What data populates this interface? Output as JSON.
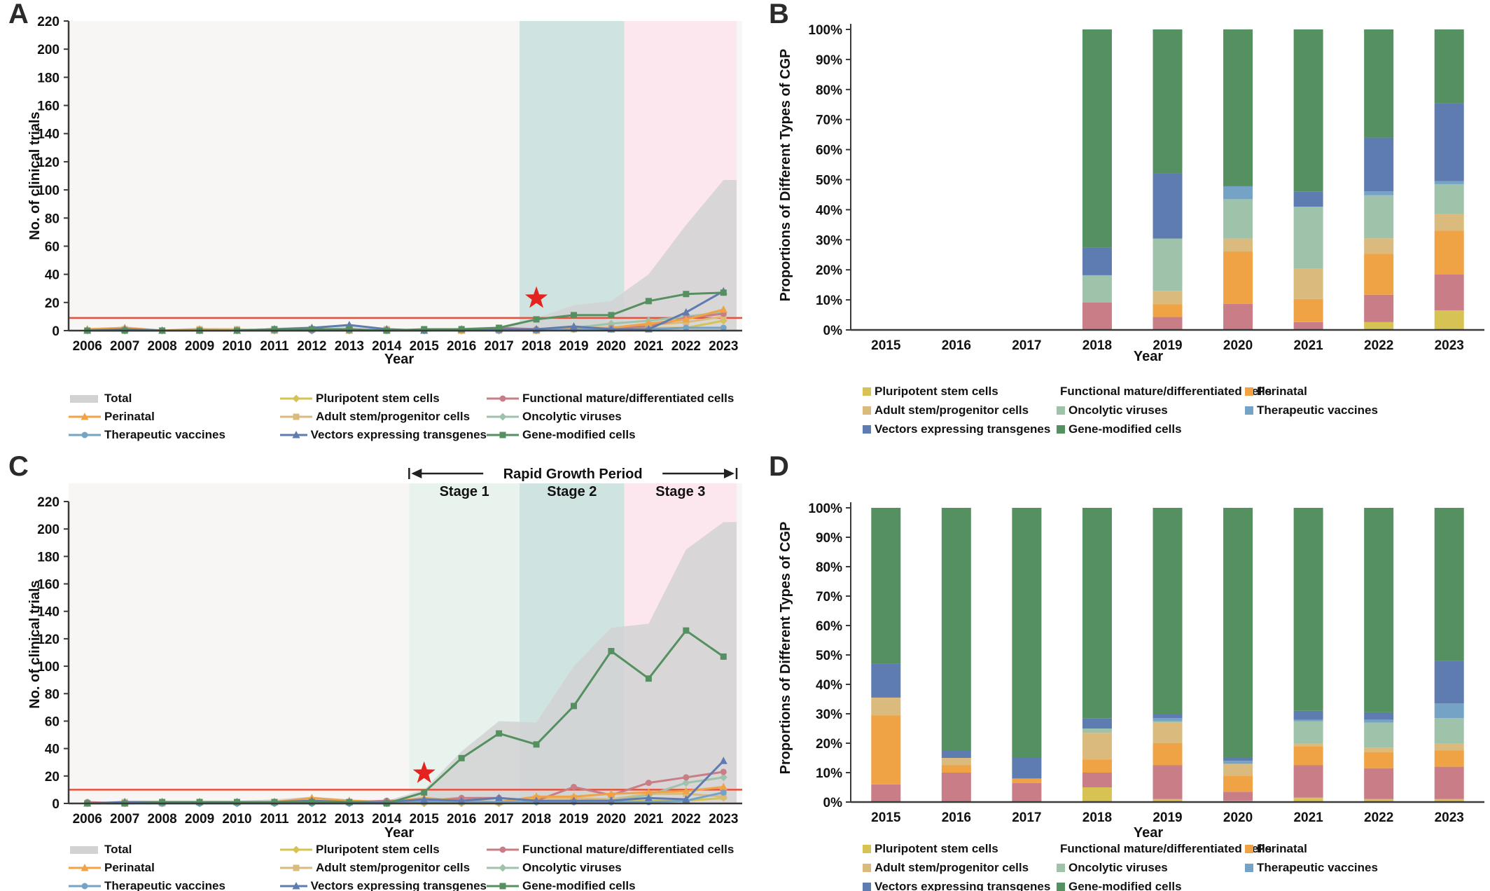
{
  "colors": {
    "bg_plot": "#f7f6f5",
    "band_mint": "#e9f3ee",
    "band_teal": "#cfe3e0",
    "band_pink": "#fbe7ed",
    "total_gray": "#d2d2d2",
    "ref_red": "#e8503c",
    "star_red": "#e42320",
    "axis": "#3a3a3a"
  },
  "series_meta": {
    "total": {
      "label": "Total",
      "color": "#d2d2d2",
      "swatch": "area"
    },
    "pluripotent": {
      "label": "Pluripotent stem cells",
      "color": "#d6c354",
      "marker": "diamond"
    },
    "functional": {
      "label": "Functional mature/differentiated cells",
      "color": "#c97d86",
      "marker": "circle"
    },
    "perinatal": {
      "label": "Perinatal",
      "color": "#f0a345",
      "marker": "triangle"
    },
    "adult": {
      "label": "Adult stem/progenitor cells",
      "color": "#dabb7d",
      "marker": "square"
    },
    "oncolytic": {
      "label": "Oncolytic viruses",
      "color": "#9fc2ab",
      "marker": "diamond"
    },
    "vaccines": {
      "label": "Therapeutic vaccines",
      "color": "#74a3c6",
      "marker": "circle"
    },
    "vectors": {
      "label": "Vectors expressing transgenes",
      "color": "#5f7cb0",
      "marker": "triangle"
    },
    "gene_modified": {
      "label": "Gene-modified cells",
      "color": "#559060",
      "marker": "square"
    }
  },
  "panels": {
    "a": {
      "label": "A",
      "y_title": "No. of clinical trials",
      "x_title": "Year"
    },
    "b": {
      "label": "B",
      "y_title": "Proportions of Different Types of CGP",
      "x_title": "Year"
    },
    "c": {
      "label": "C",
      "y_title": "No. of clinical trials",
      "x_title": "Year"
    },
    "d": {
      "label": "D",
      "y_title": "Proportions of Different Types of CGP",
      "x_title": "Year"
    }
  },
  "legends": {
    "line_panels_rows": [
      [
        "total",
        "pluripotent",
        "functional"
      ],
      [
        "perinatal",
        "adult",
        "oncolytic"
      ],
      [
        "vaccines",
        "vectors",
        "gene_modified"
      ]
    ],
    "bar_panels_rows": [
      [
        "pluripotent",
        "functional",
        "perinatal"
      ],
      [
        "adult",
        "oncolytic",
        "vaccines"
      ],
      [
        "vectors",
        "gene_modified"
      ]
    ]
  },
  "chart_data": [
    {
      "id": "A",
      "type": "line",
      "xlabel": "Year",
      "ylabel": "No. of clinical trials",
      "x": [
        2006,
        2007,
        2008,
        2009,
        2010,
        2011,
        2012,
        2013,
        2014,
        2015,
        2016,
        2017,
        2018,
        2019,
        2020,
        2021,
        2022,
        2023
      ],
      "ylim": [
        0,
        220
      ],
      "ytick_step": 20,
      "grid": false,
      "legend_position": "bottom",
      "bands": [
        {
          "from": 2017.55,
          "to": 2020.35,
          "color_key": "band_teal"
        },
        {
          "from": 2020.35,
          "to": 2023.35,
          "color_key": "band_pink"
        }
      ],
      "ref_line_y": 9,
      "star": {
        "x": 2018,
        "y": 23
      },
      "area_extend_to": 2023.35,
      "total_values": [
        1,
        3,
        1,
        2,
        1,
        2,
        3,
        4,
        2,
        1,
        2,
        3,
        9,
        18,
        21,
        40,
        75,
        107
      ],
      "series": [
        {
          "key": "pluripotent",
          "values": [
            0,
            0,
            0,
            0,
            0,
            0,
            0,
            0,
            0,
            0,
            0,
            0,
            0,
            1,
            1,
            2,
            2,
            7
          ]
        },
        {
          "key": "adult",
          "values": [
            0,
            1,
            0,
            1,
            1,
            0,
            1,
            0,
            1,
            0,
            0,
            0,
            0,
            1,
            2,
            4,
            6,
            10
          ]
        },
        {
          "key": "oncolytic",
          "values": [
            0,
            0,
            0,
            0,
            0,
            0,
            0,
            0,
            0,
            0,
            0,
            0,
            1,
            2,
            5,
            7,
            10,
            13
          ]
        },
        {
          "key": "functional",
          "values": [
            0,
            0,
            0,
            0,
            0,
            0,
            0,
            0,
            0,
            0,
            0,
            2,
            1,
            1,
            2,
            3,
            9,
            12
          ]
        },
        {
          "key": "perinatal",
          "values": [
            1,
            2,
            0,
            1,
            0,
            0,
            1,
            0,
            0,
            0,
            0,
            1,
            0,
            2,
            2,
            5,
            8,
            15
          ]
        },
        {
          "key": "vaccines",
          "values": [
            0,
            0,
            0,
            0,
            0,
            0,
            0,
            0,
            0,
            0,
            1,
            0,
            0,
            1,
            1,
            1,
            2,
            2
          ]
        },
        {
          "key": "vectors",
          "values": [
            0,
            1,
            0,
            0,
            0,
            1,
            2,
            4,
            1,
            0,
            1,
            1,
            1,
            3,
            1,
            1,
            13,
            28
          ]
        },
        {
          "key": "gene_modified",
          "values": [
            0,
            0,
            0,
            0,
            0,
            1,
            1,
            1,
            0,
            1,
            1,
            2,
            8,
            11,
            11,
            21,
            26,
            27
          ]
        }
      ]
    },
    {
      "id": "B",
      "type": "stacked_bar_percent",
      "xlabel": "Year",
      "ylabel": "Proportions of Different Types of CGP",
      "x": [
        2015,
        2016,
        2017,
        2018,
        2019,
        2020,
        2021,
        2022,
        2023
      ],
      "ylim": [
        0,
        100
      ],
      "ytick_step": 10,
      "grid": false,
      "legend_position": "bottom",
      "series": [
        {
          "key": "pluripotent",
          "values": [
            0,
            0,
            0,
            0,
            0,
            0,
            0,
            2.6,
            6.5
          ]
        },
        {
          "key": "functional",
          "values": [
            0,
            0,
            0,
            9.1,
            4.3,
            8.7,
            2.6,
            9.1,
            12.0
          ]
        },
        {
          "key": "perinatal",
          "values": [
            0,
            0,
            0,
            0,
            4.3,
            17.4,
            7.7,
            13.6,
            14.5
          ]
        },
        {
          "key": "adult",
          "values": [
            0,
            0,
            0,
            0,
            4.4,
            4.3,
            10.2,
            5.2,
            5.5
          ]
        },
        {
          "key": "oncolytic",
          "values": [
            0,
            0,
            0,
            9.1,
            17.4,
            13.1,
            20.5,
            14.3,
            10.0
          ]
        },
        {
          "key": "vaccines",
          "values": [
            0,
            0,
            0,
            0,
            0,
            4.3,
            0,
            1.3,
            1.0
          ]
        },
        {
          "key": "vectors",
          "values": [
            0,
            0,
            0,
            9.1,
            21.8,
            0,
            5.1,
            17.9,
            26.0
          ]
        },
        {
          "key": "gene_modified",
          "values": [
            0,
            0,
            0,
            72.7,
            47.8,
            52.2,
            53.9,
            36.0,
            24.5
          ]
        }
      ]
    },
    {
      "id": "C",
      "type": "line",
      "xlabel": "Year",
      "ylabel": "No. of clinical trials",
      "x": [
        2006,
        2007,
        2008,
        2009,
        2010,
        2011,
        2012,
        2013,
        2014,
        2015,
        2016,
        2017,
        2018,
        2019,
        2020,
        2021,
        2022,
        2023
      ],
      "ylim": [
        0,
        220
      ],
      "ytick_step": 20,
      "grid": false,
      "legend_position": "bottom",
      "stages": [
        {
          "label": "Stage 1",
          "from": 2014.6,
          "to": 2017.55,
          "color_key": "band_mint"
        },
        {
          "label": "Stage 2",
          "from": 2017.55,
          "to": 2020.35,
          "color_key": "band_teal"
        },
        {
          "label": "Stage  3",
          "from": 2020.35,
          "to": 2023.35,
          "color_key": "band_pink"
        }
      ],
      "growth_arrow": {
        "label": "Rapid Growth Period",
        "from": 2014.6,
        "to": 2023.35
      },
      "ref_line_y": 10,
      "star": {
        "x": 2015,
        "y": 22
      },
      "area_extend_to": 2023.35,
      "total_values": [
        1,
        2,
        2,
        2,
        2,
        3,
        5,
        3,
        2,
        10,
        38,
        60,
        59,
        100,
        128,
        131,
        185,
        205
      ],
      "series": [
        {
          "key": "pluripotent",
          "values": [
            0,
            0,
            0,
            0,
            0,
            1,
            0,
            0,
            0,
            0,
            0,
            0,
            1,
            1,
            1,
            2,
            2,
            4
          ]
        },
        {
          "key": "adult",
          "values": [
            0,
            1,
            0,
            1,
            1,
            1,
            2,
            1,
            1,
            1,
            1,
            1,
            4,
            4,
            3,
            7,
            7,
            5
          ]
        },
        {
          "key": "oncolytic",
          "values": [
            0,
            0,
            0,
            0,
            0,
            0,
            0,
            0,
            0,
            1,
            1,
            1,
            1,
            2,
            2,
            6,
            15,
            19
          ]
        },
        {
          "key": "functional",
          "values": [
            1,
            0,
            0,
            0,
            0,
            1,
            1,
            1,
            2,
            2,
            4,
            4,
            2,
            12,
            6,
            15,
            19,
            23
          ]
        },
        {
          "key": "perinatal",
          "values": [
            0,
            0,
            1,
            1,
            1,
            1,
            4,
            2,
            1,
            4,
            2,
            1,
            5,
            5,
            7,
            8,
            9,
            12
          ]
        },
        {
          "key": "vaccines",
          "values": [
            0,
            0,
            0,
            0,
            0,
            0,
            0,
            0,
            0,
            1,
            1,
            1,
            1,
            1,
            1,
            1,
            2,
            8
          ]
        },
        {
          "key": "vectors",
          "values": [
            0,
            1,
            1,
            1,
            1,
            1,
            2,
            1,
            1,
            3,
            2,
            4,
            2,
            2,
            2,
            4,
            3,
            31
          ]
        },
        {
          "key": "gene_modified",
          "values": [
            0,
            0,
            1,
            1,
            1,
            1,
            1,
            1,
            0,
            8,
            33,
            51,
            43,
            71,
            111,
            91,
            126,
            107
          ]
        }
      ]
    },
    {
      "id": "D",
      "type": "stacked_bar_percent",
      "xlabel": "Year",
      "ylabel": "Proportions of Different Types of CGP",
      "x": [
        2015,
        2016,
        2017,
        2018,
        2019,
        2020,
        2021,
        2022,
        2023
      ],
      "ylim": [
        0,
        100
      ],
      "ytick_step": 10,
      "grid": false,
      "legend_position": "bottom",
      "series": [
        {
          "key": "pluripotent",
          "values": [
            0,
            0,
            0,
            5,
            1,
            0.5,
            1.5,
            1,
            1
          ]
        },
        {
          "key": "functional",
          "values": [
            6,
            10,
            6.5,
            5,
            11.5,
            3,
            11,
            10.5,
            11
          ]
        },
        {
          "key": "perinatal",
          "values": [
            23.5,
            2.5,
            1.5,
            4.5,
            7.5,
            5.5,
            6.5,
            5.5,
            5.5
          ]
        },
        {
          "key": "adult",
          "values": [
            6,
            2.5,
            0,
            9,
            7,
            4,
            1,
            1.5,
            2.5
          ]
        },
        {
          "key": "oncolytic",
          "values": [
            0,
            0,
            0,
            1.5,
            0.5,
            0,
            7.5,
            8.5,
            8.5
          ]
        },
        {
          "key": "vaccines",
          "values": [
            0,
            0,
            0,
            0,
            1,
            1,
            0.5,
            1,
            5
          ]
        },
        {
          "key": "vectors",
          "values": [
            11.5,
            2.5,
            7,
            3.5,
            1.5,
            1,
            3,
            2.5,
            14.5
          ]
        },
        {
          "key": "gene_modified",
          "values": [
            53,
            82.5,
            85,
            71.5,
            70,
            85,
            69,
            69.5,
            52
          ]
        }
      ]
    }
  ]
}
